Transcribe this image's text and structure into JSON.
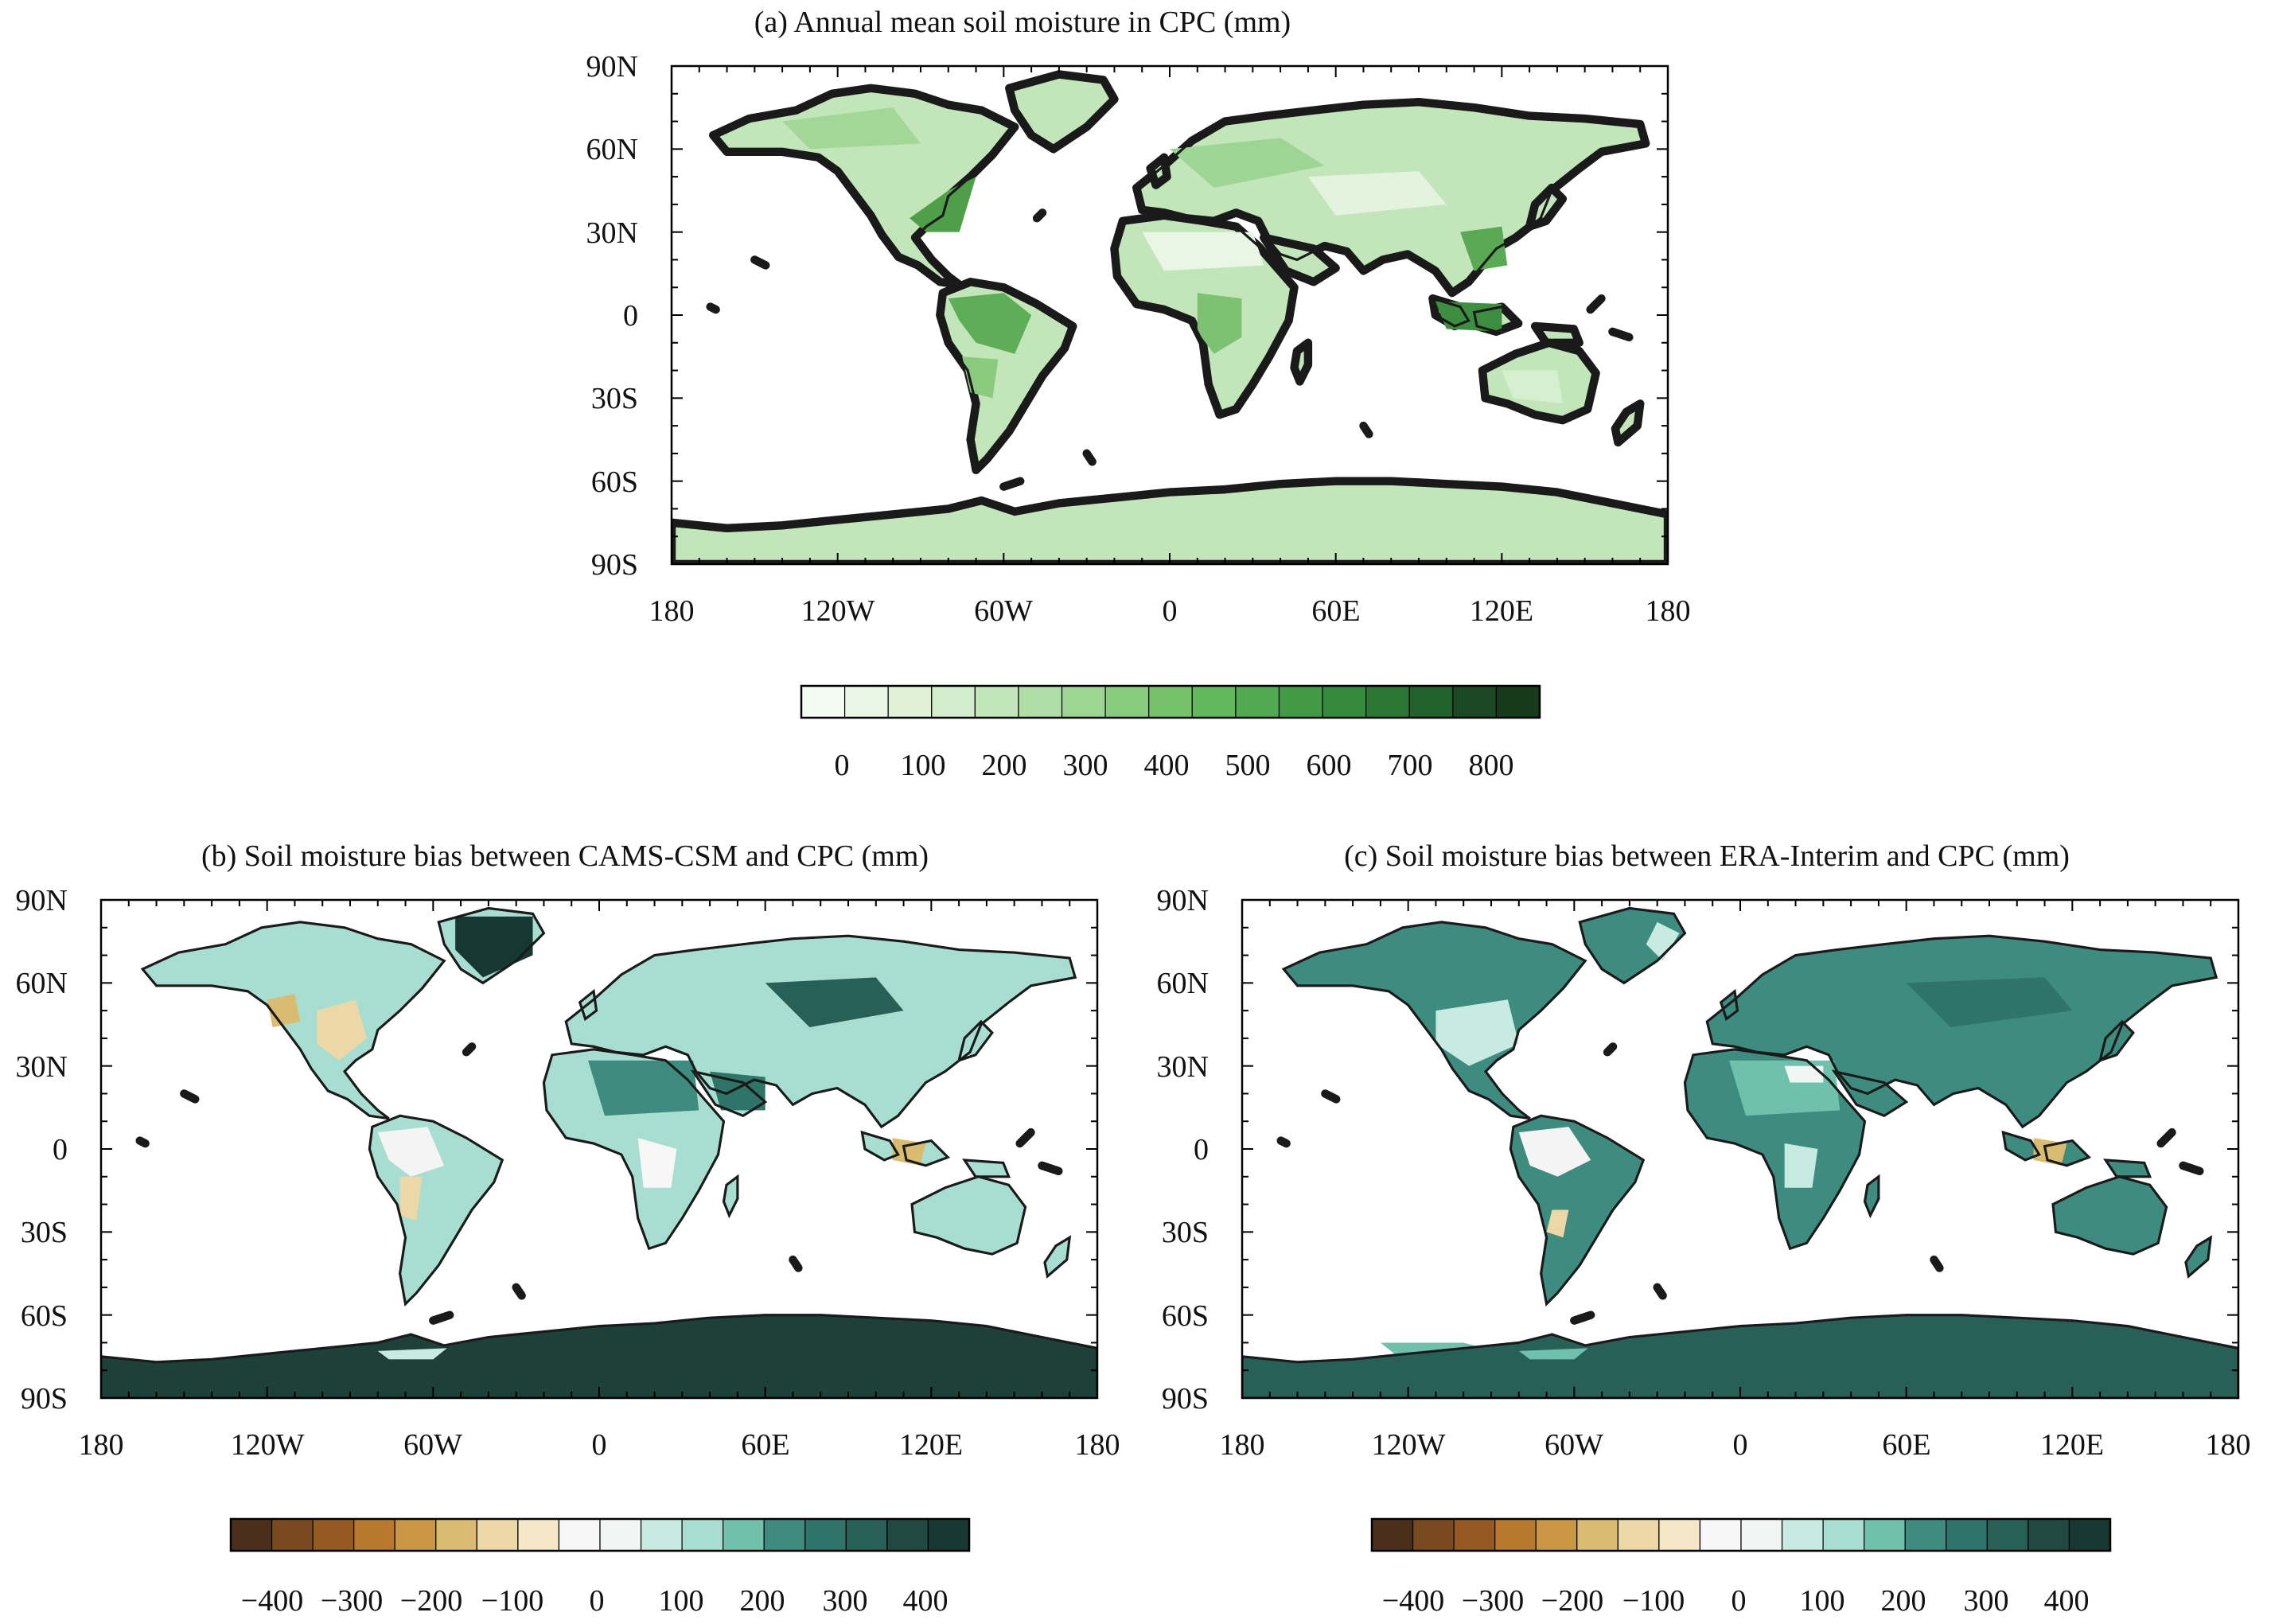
{
  "panels": [
    {
      "id": "a",
      "title": "(a) Annual mean soil moisture in CPC (mm)",
      "lat_ticks": [
        "90N",
        "60N",
        "30N",
        "0",
        "30S",
        "60S",
        "90S"
      ],
      "lon_ticks": [
        "180",
        "120W",
        "60W",
        "0",
        "60E",
        "120E",
        "180"
      ],
      "colormap": "greens",
      "colorbar": {
        "colors": [
          "#f4fbf1",
          "#e9f6e4",
          "#dff2d9",
          "#d2edcb",
          "#c2e6ba",
          "#b0dea7",
          "#9dd592",
          "#89cb7e",
          "#76c26b",
          "#63b75c",
          "#52aa50",
          "#439a46",
          "#358a3c",
          "#2b7733",
          "#21622b",
          "#1b4a22",
          "#173a1d"
        ],
        "labels": [
          "0",
          "100",
          "200",
          "300",
          "400",
          "500",
          "600",
          "700",
          "800"
        ]
      }
    },
    {
      "id": "b",
      "title": "(b) Soil moisture bias between CAMS-CSM and CPC (mm)",
      "lat_ticks": [
        "90N",
        "60N",
        "30N",
        "0",
        "30S",
        "60S",
        "90S"
      ],
      "lon_ticks": [
        "180",
        "120W",
        "60W",
        "0",
        "60E",
        "120E",
        "180"
      ],
      "colormap": "brown-teal diverging",
      "colorbar": {
        "colors": [
          "#4b2f1a",
          "#7a4a1f",
          "#955a22",
          "#b8782d",
          "#c99644",
          "#d9bc72",
          "#ecd7a7",
          "#f4e8c9",
          "#f7f7f7",
          "#f1f5f3",
          "#c7eae1",
          "#a8ded1",
          "#6fc1ad",
          "#3e8c7f",
          "#2f7469",
          "#285f57",
          "#204942",
          "#173832"
        ],
        "labels": [
          "−400",
          "−300",
          "−200",
          "−100",
          "0",
          "100",
          "200",
          "300",
          "400"
        ]
      }
    },
    {
      "id": "c",
      "title": "(c) Soil moisture bias between ERA-Interim and CPC (mm)",
      "lat_ticks": [
        "90N",
        "60N",
        "30N",
        "0",
        "30S",
        "60S",
        "90S"
      ],
      "lon_ticks": [
        "180",
        "120W",
        "60W",
        "0",
        "60E",
        "120E",
        "180"
      ],
      "colormap": "brown-teal diverging",
      "colorbar": {
        "colors": [
          "#4b2f1a",
          "#7a4a1f",
          "#955a22",
          "#b8782d",
          "#c99644",
          "#d9bc72",
          "#ecd7a7",
          "#f4e8c9",
          "#f7f7f7",
          "#f1f5f3",
          "#c7eae1",
          "#a8ded1",
          "#6fc1ad",
          "#3e8c7f",
          "#2f7469",
          "#285f57",
          "#204942",
          "#173832"
        ],
        "labels": [
          "−400",
          "−300",
          "−200",
          "−100",
          "0",
          "100",
          "200",
          "300",
          "400"
        ]
      }
    }
  ],
  "colors": {
    "ocean": "#ffffff",
    "coastline": "#1a1a1a",
    "frame": "#000000"
  }
}
